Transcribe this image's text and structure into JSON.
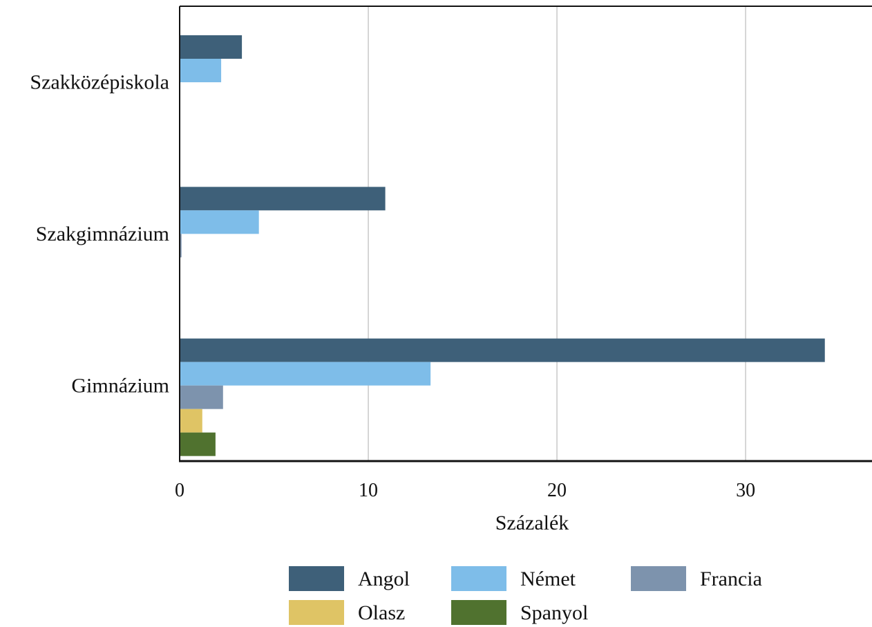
{
  "chart_data": {
    "type": "bar",
    "orientation": "horizontal",
    "categories": [
      "Szakközépiskola",
      "Szakgimnázium",
      "Gimnázium"
    ],
    "series": [
      {
        "name": "Angol",
        "color": "#3e6079",
        "values": [
          3.3,
          10.9,
          34.2
        ]
      },
      {
        "name": "Német",
        "color": "#7ebde9",
        "values": [
          2.2,
          4.2,
          13.3
        ]
      },
      {
        "name": "Francia",
        "color": "#7d93ad",
        "values": [
          0,
          0.1,
          2.3
        ]
      },
      {
        "name": "Olasz",
        "color": "#dfc465",
        "values": [
          0,
          0,
          1.2
        ]
      },
      {
        "name": "Spanyol",
        "color": "#50722f",
        "values": [
          0,
          0,
          1.9
        ]
      }
    ],
    "xlabel": "Százalék",
    "ylabel": "",
    "xlim": [
      0,
      36.7
    ],
    "xticks": [
      0,
      10,
      20,
      30
    ],
    "grid": true,
    "legend_position": "bottom"
  }
}
